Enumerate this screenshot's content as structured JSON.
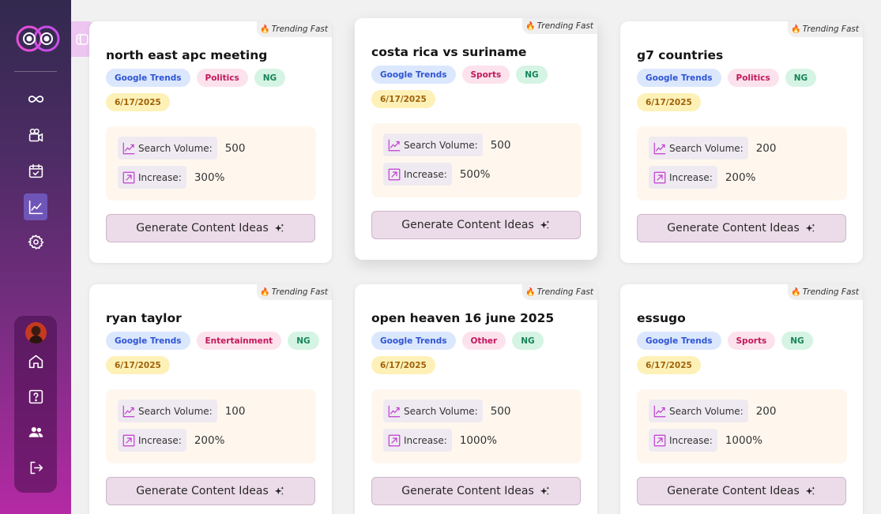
{
  "sidebar": {
    "nav": [
      {
        "icon": "infinity-icon",
        "active": false
      },
      {
        "icon": "video-camera-icon",
        "active": false
      },
      {
        "icon": "calendar-check-icon",
        "active": false
      },
      {
        "icon": "trending-chart-icon",
        "active": true
      },
      {
        "icon": "gear-icon",
        "active": false
      }
    ],
    "bottom_nav": [
      "avatar",
      "home-icon",
      "help-icon",
      "users-icon",
      "logout-icon"
    ]
  },
  "cards": [
    {
      "badge": "Trending Fast",
      "title": "north east apc meeting",
      "source": "Google Trends",
      "category": "Politics",
      "region": "NG",
      "date": "6/17/2025",
      "search_volume_label": "Search Volume:",
      "search_volume": "500",
      "increase_label": "Increase:",
      "increase": "300%",
      "button": "Generate Content Ideas"
    },
    {
      "badge": "Trending Fast",
      "title": "costa rica vs suriname",
      "source": "Google Trends",
      "category": "Sports",
      "region": "NG",
      "date": "6/17/2025",
      "search_volume_label": "Search Volume:",
      "search_volume": "500",
      "increase_label": "Increase:",
      "increase": "500%",
      "button": "Generate Content Ideas"
    },
    {
      "badge": "Trending Fast",
      "title": "g7 countries",
      "source": "Google Trends",
      "category": "Politics",
      "region": "NG",
      "date": "6/17/2025",
      "search_volume_label": "Search Volume:",
      "search_volume": "200",
      "increase_label": "Increase:",
      "increase": "200%",
      "button": "Generate Content Ideas"
    },
    {
      "badge": "Trending Fast",
      "title": "ryan taylor",
      "source": "Google Trends",
      "category": "Entertainment",
      "region": "NG",
      "date": "6/17/2025",
      "search_volume_label": "Search Volume:",
      "search_volume": "100",
      "increase_label": "Increase:",
      "increase": "200%",
      "button": "Generate Content Ideas"
    },
    {
      "badge": "Trending Fast",
      "title": "open heaven 16 june 2025",
      "source": "Google Trends",
      "category": "Other",
      "region": "NG",
      "date": "6/17/2025",
      "search_volume_label": "Search Volume:",
      "search_volume": "500",
      "increase_label": "Increase:",
      "increase": "1000%",
      "button": "Generate Content Ideas"
    },
    {
      "badge": "Trending Fast",
      "title": "essugo",
      "source": "Google Trends",
      "category": "Sports",
      "region": "NG",
      "date": "6/17/2025",
      "search_volume_label": "Search Volume:",
      "search_volume": "200",
      "increase_label": "Increase:",
      "increase": "1000%",
      "button": "Generate Content Ideas"
    }
  ]
}
